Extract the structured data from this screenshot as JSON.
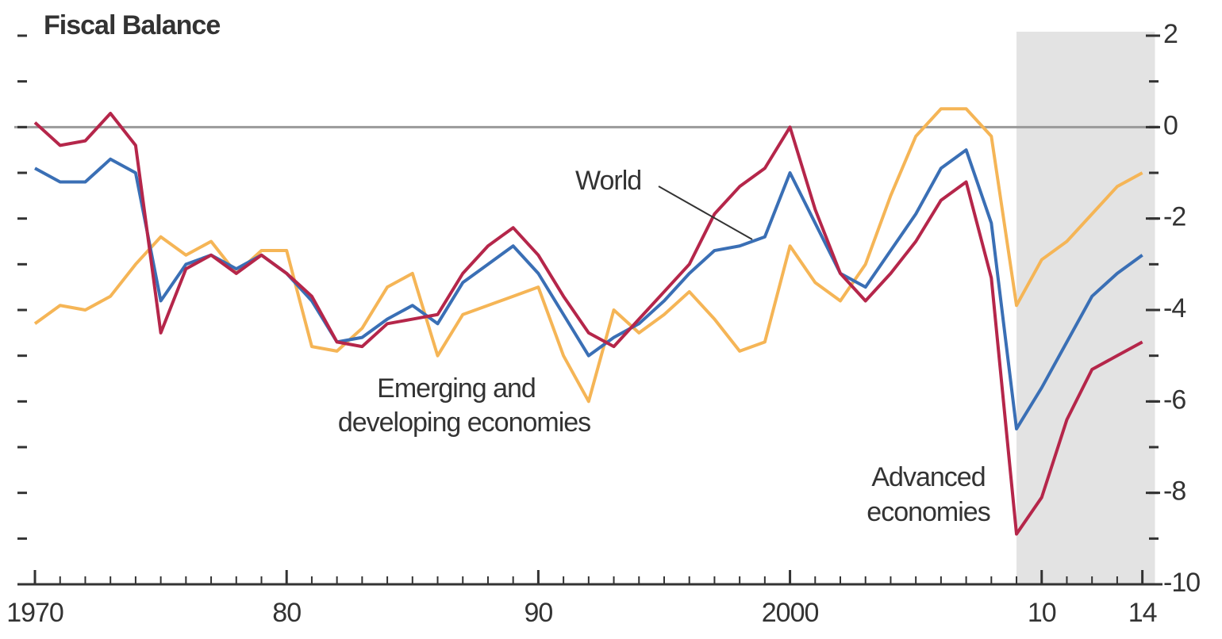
{
  "chart_data": {
    "type": "line",
    "title": "Fiscal Balance",
    "x": [
      1970,
      1971,
      1972,
      1973,
      1974,
      1975,
      1976,
      1977,
      1978,
      1979,
      1980,
      1981,
      1982,
      1983,
      1984,
      1985,
      1986,
      1987,
      1988,
      1989,
      1990,
      1991,
      1992,
      1993,
      1994,
      1995,
      1996,
      1997,
      1998,
      1999,
      2000,
      2001,
      2002,
      2003,
      2004,
      2005,
      2006,
      2007,
      2008,
      2009,
      2010,
      2011,
      2012,
      2013,
      2014
    ],
    "series": [
      {
        "name": "Emerging and developing economies",
        "color": "#f5b556",
        "values": [
          -4.3,
          -3.9,
          -4.0,
          -3.7,
          -3.0,
          -2.4,
          -2.8,
          -2.5,
          -3.2,
          -2.7,
          -2.7,
          -4.8,
          -4.9,
          -4.4,
          -3.5,
          -3.2,
          -5.0,
          -4.1,
          -3.9,
          -3.7,
          -3.5,
          -5.0,
          -6.0,
          -4.0,
          -4.5,
          -4.1,
          -3.6,
          -4.2,
          -4.9,
          -4.7,
          -2.6,
          -3.4,
          -3.8,
          -3.0,
          -1.5,
          -0.2,
          0.4,
          0.4,
          -0.2,
          -3.9,
          -2.9,
          -2.5,
          -1.9,
          -1.3,
          -1.0
        ]
      },
      {
        "name": "World",
        "color": "#3a6fb5",
        "values": [
          -0.9,
          -1.2,
          -1.2,
          -0.7,
          -1.0,
          -3.8,
          -3.0,
          -2.8,
          -3.1,
          -2.8,
          -3.2,
          -3.8,
          -4.7,
          -4.6,
          -4.2,
          -3.9,
          -4.3,
          -3.4,
          -3.0,
          -2.6,
          -3.2,
          -4.1,
          -5.0,
          -4.6,
          -4.3,
          -3.8,
          -3.2,
          -2.7,
          -2.6,
          -2.4,
          -1.0,
          -2.1,
          -3.2,
          -3.5,
          -2.7,
          -1.9,
          -0.9,
          -0.5,
          -2.1,
          -6.6,
          -5.7,
          -4.7,
          -3.7,
          -3.2,
          -2.8
        ]
      },
      {
        "name": "Advanced economies",
        "color": "#b5264a",
        "values": [
          0.1,
          -0.4,
          -0.3,
          0.3,
          -0.4,
          -4.5,
          -3.1,
          -2.8,
          -3.2,
          -2.8,
          -3.2,
          -3.7,
          -4.7,
          -4.8,
          -4.3,
          -4.2,
          -4.1,
          -3.2,
          -2.6,
          -2.2,
          -2.8,
          -3.7,
          -4.5,
          -4.8,
          -4.2,
          -3.6,
          -3.0,
          -1.9,
          -1.3,
          -0.9,
          0.0,
          -1.8,
          -3.2,
          -3.8,
          -3.2,
          -2.5,
          -1.6,
          -1.2,
          -3.3,
          -8.9,
          -8.1,
          -6.4,
          -5.3,
          -5.0,
          -4.7
        ]
      }
    ],
    "annotations": [
      "World",
      "Emerging and",
      "developing economies",
      "Advanced",
      "economies"
    ],
    "xlim": [
      1969.4,
      2014.8
    ],
    "xticks": [
      1970,
      {
        "value": 1980,
        "label": "80"
      },
      {
        "value": 1990,
        "label": "90"
      },
      2000,
      {
        "value": 2010,
        "label": "10"
      },
      {
        "value": 2014,
        "label": "14"
      }
    ],
    "xminor_step": 1,
    "ylim": [
      -10,
      2
    ],
    "yticks": [
      2,
      0,
      -2,
      -4,
      -6,
      -8,
      -10
    ],
    "yminor_step": 1,
    "shade_x": [
      2009,
      2014.5
    ],
    "shade_color": "#e3e3e3",
    "zero_line": true
  }
}
